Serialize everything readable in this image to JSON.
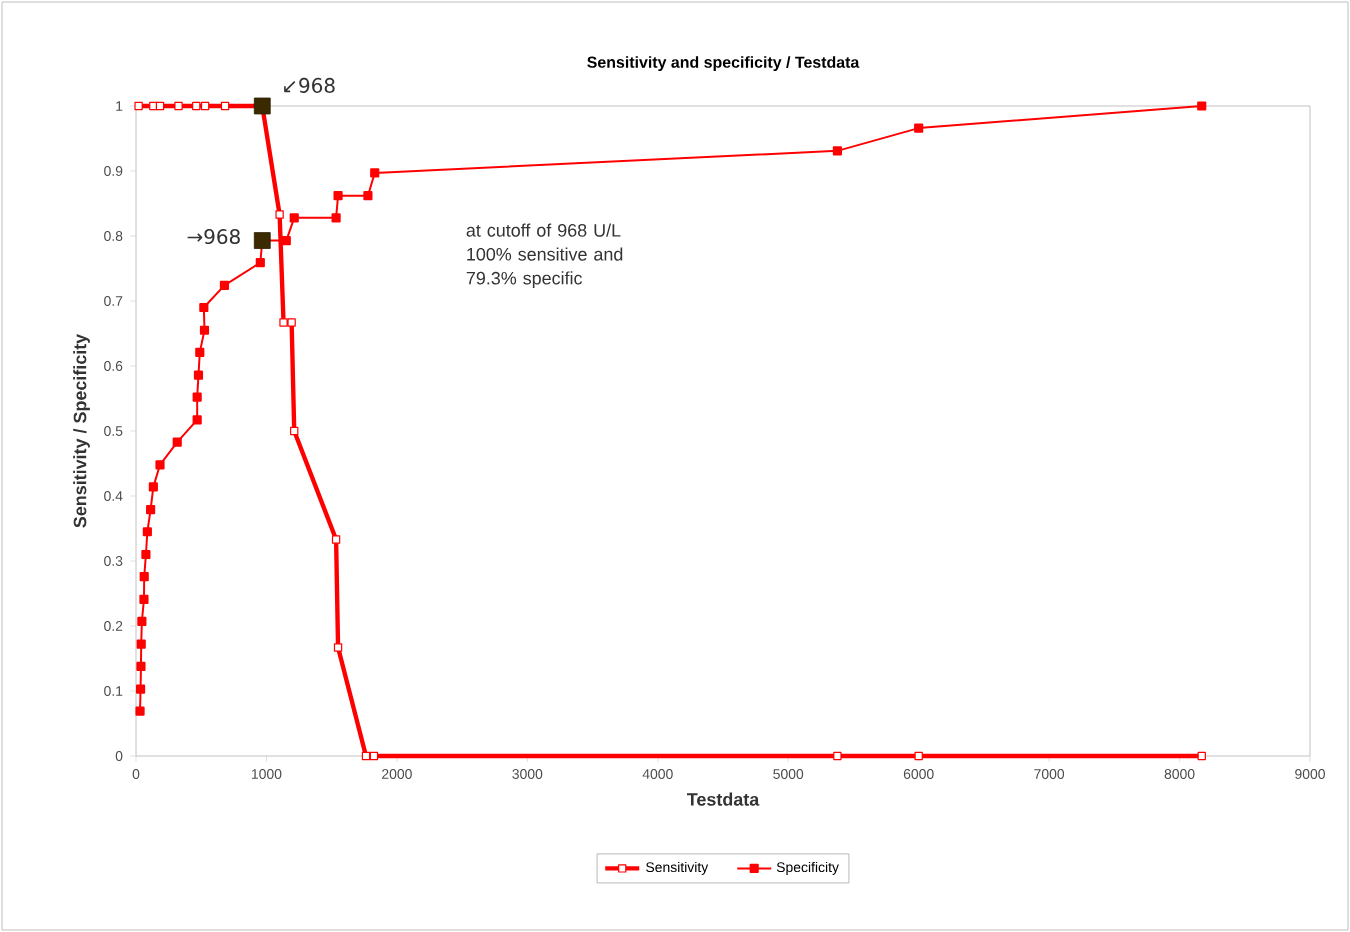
{
  "chart_data": {
    "type": "line",
    "title": "Sensitivity and specificity / Testdata",
    "xlabel": "Testdata",
    "ylabel": "Sensitivity / Specificity",
    "xlim": [
      0,
      9000
    ],
    "xticks": [
      0,
      1000,
      2000,
      3000,
      4000,
      5000,
      6000,
      7000,
      8000,
      9000
    ],
    "ylim": [
      0,
      1
    ],
    "yticks": [
      0,
      0.1,
      0.2,
      0.3,
      0.4,
      0.5,
      0.6,
      0.7,
      0.8,
      0.9,
      1
    ],
    "grid": false,
    "legend": "bottom",
    "marker": "square",
    "series": [
      {
        "name": "Sensitivity",
        "color": "#ff0000",
        "x": [
          20,
          133,
          184,
          326,
          462,
          530,
          683,
          968,
          1101,
          1131,
          1193,
          1213,
          1534,
          1549,
          1763,
          1824,
          5377,
          6000,
          8170
        ],
        "values": [
          1,
          1,
          1,
          1,
          1,
          1,
          1,
          1,
          0.833,
          0.667,
          0.667,
          0.5,
          0.333,
          0.167,
          0,
          0,
          0,
          0,
          0
        ]
      },
      {
        "name": "Specificity",
        "color": "#ff0000",
        "x": [
          31,
          35,
          38,
          40,
          45,
          61,
          63,
          76,
          87,
          112,
          133,
          184,
          316,
          469,
          469,
          479,
          489,
          525,
          520,
          678,
          953,
          968,
          1152,
          1213,
          1534,
          1549,
          1778,
          1830,
          5377,
          6000,
          8170
        ],
        "values": [
          0.069,
          0.103,
          0.138,
          0.172,
          0.207,
          0.241,
          0.276,
          0.31,
          0.345,
          0.379,
          0.414,
          0.448,
          0.483,
          0.517,
          0.552,
          0.586,
          0.621,
          0.655,
          0.69,
          0.724,
          0.759,
          0.793,
          0.793,
          0.828,
          0.828,
          0.862,
          0.862,
          0.897,
          0.931,
          0.966,
          1
        ]
      },
      {
        "type": "scatter",
        "color": "#3b2a00",
        "x": [
          968,
          968
        ],
        "values": [
          1,
          0.793
        ]
      }
    ],
    "annotations": [
      {
        "text": "↙968",
        "x": 968,
        "y": 1
      },
      {
        "text": "→968",
        "x": 968,
        "y": 0.793
      },
      "at cutoff of 968 U/L 100% sensitive and 79.3% specific"
    ]
  }
}
